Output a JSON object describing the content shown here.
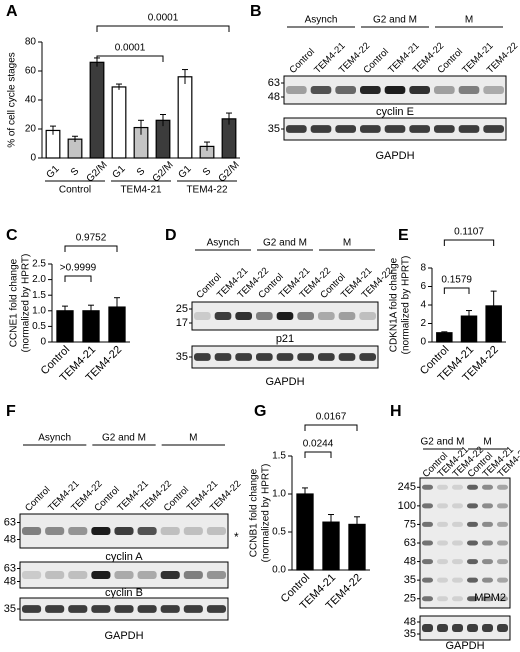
{
  "chart_data": [
    {
      "type": "bar",
      "panel": "A",
      "y_label": [
        "% of cell cycle stages"
      ],
      "categories": [
        "G1",
        "S",
        "G2/M",
        "G1",
        "S",
        "G2/M",
        "G1",
        "S",
        "G2/M"
      ],
      "groups": [
        "Control",
        "TEM4-21",
        "TEM4-22"
      ],
      "values": [
        19,
        13,
        66,
        49,
        21,
        26,
        56,
        8,
        27
      ],
      "errors": [
        3,
        2,
        3,
        2,
        5,
        4,
        5,
        3,
        4
      ],
      "colors": [
        "#ffffff",
        "#c4c4c4",
        "#3c3c3c"
      ],
      "ylim": [
        0,
        80
      ],
      "yticks": [
        0,
        20,
        40,
        60,
        80
      ],
      "annotations": [
        "0.0001",
        "0.0001"
      ]
    },
    {
      "type": "bar",
      "panel": "C",
      "y_label": [
        "CCNE1 fold change",
        "(normalized by HPRT)"
      ],
      "categories": [
        "Control",
        "TEM4-21",
        "TEM4-22"
      ],
      "values": [
        1.0,
        1.0,
        1.12
      ],
      "errors": [
        0.15,
        0.18,
        0.3
      ],
      "colors": [
        "#000000"
      ],
      "ylim": [
        0,
        2.5
      ],
      "yticks": [
        0,
        0.5,
        {
          "value": 1,
          "label": "1.0"
        },
        1.5,
        {
          "value": 2,
          "label": "2.0"
        },
        2.5
      ],
      "annotations": [
        ">0.9999",
        "0.9752"
      ]
    },
    {
      "type": "bar",
      "panel": "E",
      "y_label": [
        "CDKN1A fold change",
        "(normalized by HPRT)"
      ],
      "categories": [
        "Control",
        "TEM4-21",
        "TEM4-22"
      ],
      "values": [
        1.0,
        2.8,
        3.9
      ],
      "errors": [
        0.1,
        0.6,
        1.6
      ],
      "colors": [
        "#000000"
      ],
      "ylim": [
        0,
        8
      ],
      "yticks": [
        0,
        2,
        4,
        6,
        8
      ],
      "annotations": [
        "0.1579",
        "0.1107"
      ]
    },
    {
      "type": "bar",
      "panel": "G",
      "y_label": [
        "CCNB1 fold change",
        "(normalized by HPRT)"
      ],
      "categories": [
        "Control",
        "TEM4-21",
        "TEM4-22"
      ],
      "values": [
        1.0,
        0.63,
        0.6
      ],
      "errors": [
        0.08,
        0.1,
        0.1
      ],
      "colors": [
        "#000000"
      ],
      "ylim": [
        0,
        1.5
      ],
      "yticks": [
        {
          "value": 0,
          "label": "0.0"
        },
        0.5,
        {
          "value": 1,
          "label": "1.0"
        },
        1.5
      ],
      "annotations": [
        "0.0244",
        "0.0167"
      ]
    }
  ],
  "blots": [
    {
      "panel": "B",
      "groups": [
        "Asynch",
        "G2 and M",
        "M"
      ],
      "lanes": [
        "Control",
        "TEM4-21",
        "TEM4-22",
        "Control",
        "TEM4-21",
        "TEM4-22",
        "Control",
        "TEM4-21",
        "TEM4-22"
      ],
      "strips": [
        {
          "label": "cyclin E",
          "markers": [
            "63",
            "48"
          ]
        },
        {
          "label": "GAPDH",
          "markers": [
            "35"
          ]
        }
      ]
    },
    {
      "panel": "D",
      "groups": [
        "Asynch",
        "G2 and M",
        "M"
      ],
      "lanes": [
        "Control",
        "TEM4-21",
        "TEM4-22",
        "Control",
        "TEM4-21",
        "TEM4-22",
        "Control",
        "TEM4-21",
        "TEM4-22"
      ],
      "strips": [
        {
          "label": "p21",
          "markers": [
            "25",
            "17"
          ]
        },
        {
          "label": "GAPDH",
          "markers": [
            "35"
          ]
        }
      ]
    },
    {
      "panel": "F",
      "groups": [
        "Asynch",
        "G2 and M",
        "M"
      ],
      "lanes": [
        "Control",
        "TEM4-21",
        "TEM4-22",
        "Control",
        "TEM4-21",
        "TEM4-22",
        "Control",
        "TEM4-21",
        "TEM4-22"
      ],
      "strips": [
        {
          "label": "cyclin A",
          "markers": [
            "63",
            "48"
          ],
          "note": "*"
        },
        {
          "label": "cyclin B",
          "markers": [
            "63",
            "48"
          ]
        },
        {
          "label": "GAPDH",
          "markers": [
            "35"
          ]
        }
      ]
    },
    {
      "panel": "H",
      "groups": [
        "G2 and M",
        "M"
      ],
      "lanes": [
        "Control",
        "TEM4-21",
        "TEM4-22",
        "Control",
        "TEM4-21",
        "TEM4-22"
      ],
      "strips": [
        {
          "label": "MPM2",
          "markers": [
            "245",
            "100",
            "75",
            "63",
            "48",
            "35",
            "25"
          ]
        },
        {
          "label": "GAPDH",
          "markers": [
            "48",
            "35"
          ]
        }
      ]
    }
  ]
}
